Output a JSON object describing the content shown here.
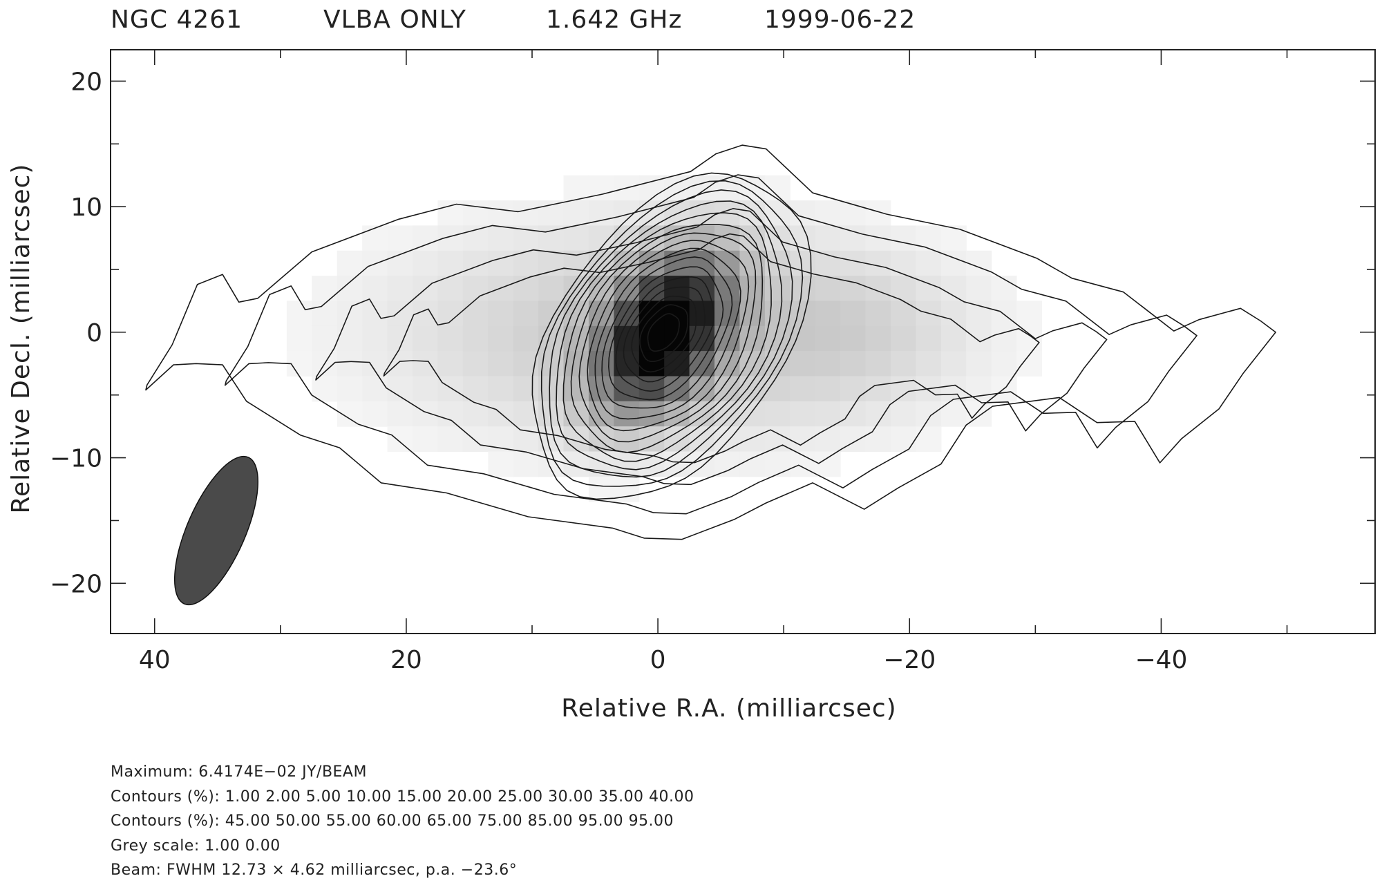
{
  "header": {
    "source": "NGC 4261",
    "array": "VLBA ONLY",
    "frequency": "1.642 GHz",
    "date": "1999-06-22"
  },
  "chart_data": {
    "type": "contour",
    "title": "NGC 4261   VLBA ONLY   1.642 GHz   1999-06-22",
    "xlabel": "Relative R.A. (milliarcsec)",
    "ylabel": "Relative Decl. (milliarcsec)",
    "xlim": [
      43.5,
      -57
    ],
    "ylim": [
      -24,
      22.5
    ],
    "x_reversed": true,
    "x_ticks": [
      40,
      20,
      0,
      -20,
      -40
    ],
    "x_tick_labels": [
      "40",
      "20",
      "0",
      "−20",
      "−40"
    ],
    "y_ticks": [
      20,
      10,
      0,
      -10,
      -20
    ],
    "y_tick_labels": [
      "20",
      "10",
      "0",
      "−10",
      "−20"
    ],
    "peak": {
      "ra": 0,
      "dec": 0,
      "value_jy_per_beam": 0.064174
    },
    "outer_contour_1pct": [
      [
        40.6,
        -4.2
      ],
      [
        38.6,
        -1.0
      ],
      [
        36.6,
        3.8
      ],
      [
        34.6,
        4.6
      ],
      [
        33.3,
        2.4
      ],
      [
        31.8,
        2.7
      ],
      [
        27.5,
        6.4
      ],
      [
        20.6,
        9.0
      ],
      [
        16.0,
        10.2
      ],
      [
        11.1,
        9.6
      ],
      [
        4.4,
        11.0
      ],
      [
        -2.6,
        12.8
      ],
      [
        -4.6,
        14.2
      ],
      [
        -6.7,
        14.9
      ],
      [
        -8.6,
        14.6
      ],
      [
        -12.3,
        11.1
      ],
      [
        -18.2,
        9.4
      ],
      [
        -24.0,
        8.2
      ],
      [
        -30.1,
        5.9
      ],
      [
        -32.9,
        4.3
      ],
      [
        -37.0,
        3.2
      ],
      [
        -41.0,
        0.1
      ],
      [
        -43.0,
        1.0
      ],
      [
        -46.3,
        1.9
      ],
      [
        -47.9,
        0.9
      ],
      [
        -49.1,
        0
      ],
      [
        -46.5,
        -3.3
      ],
      [
        -44.6,
        -6.1
      ],
      [
        -41.6,
        -8.5
      ],
      [
        -39.9,
        -10.4
      ],
      [
        -37.9,
        -7.1
      ],
      [
        -34.9,
        -7.2
      ],
      [
        -31.9,
        -5.2
      ],
      [
        -26.6,
        -5.9
      ],
      [
        -24.5,
        -7.4
      ],
      [
        -22.5,
        -10.5
      ],
      [
        -19.1,
        -12.4
      ],
      [
        -16.4,
        -14.1
      ],
      [
        -12.3,
        -12.0
      ],
      [
        -8.6,
        -13.6
      ],
      [
        -6.1,
        -14.9
      ],
      [
        -1.9,
        -16.5
      ],
      [
        1.1,
        -16.4
      ],
      [
        3.6,
        -15.6
      ],
      [
        10.3,
        -14.7
      ],
      [
        16.8,
        -12.8
      ],
      [
        22.0,
        -12.0
      ],
      [
        25.3,
        -9.2
      ],
      [
        28.4,
        -8.2
      ],
      [
        32.7,
        -5.5
      ],
      [
        34.6,
        -2.6
      ],
      [
        36.7,
        -2.5
      ],
      [
        38.5,
        -2.6
      ],
      [
        40.7,
        -4.6
      ]
    ],
    "contour_levels_pct": [
      1.0,
      2.0,
      5.0,
      10.0,
      15.0,
      20.0,
      25.0,
      30.0,
      35.0,
      40.0,
      45.0,
      50.0,
      55.0,
      60.0,
      65.0,
      75.0,
      85.0,
      95.0,
      95.0
    ],
    "beam": {
      "major_mas": 12.73,
      "minor_mas": 4.62,
      "pa_deg": -23.6,
      "center_ra": 35.1,
      "center_dec": -15.8
    }
  },
  "footer": {
    "maximum": "Maximum: 6.4174E−02 JY/BEAM",
    "contours_1": "Contours (%): 1.00 2.00 5.00 10.00 15.00 20.00 25.00 30.00 35.00 40.00",
    "contours_2": "Contours (%): 45.00 50.00 55.00 60.00 65.00 75.00 85.00 95.00 95.00",
    "grey_scale": "Grey scale: 1.00 0.00",
    "beam": "Beam: FWHM 12.73 × 4.62 milliarcsec, p.a. −23.6°"
  }
}
